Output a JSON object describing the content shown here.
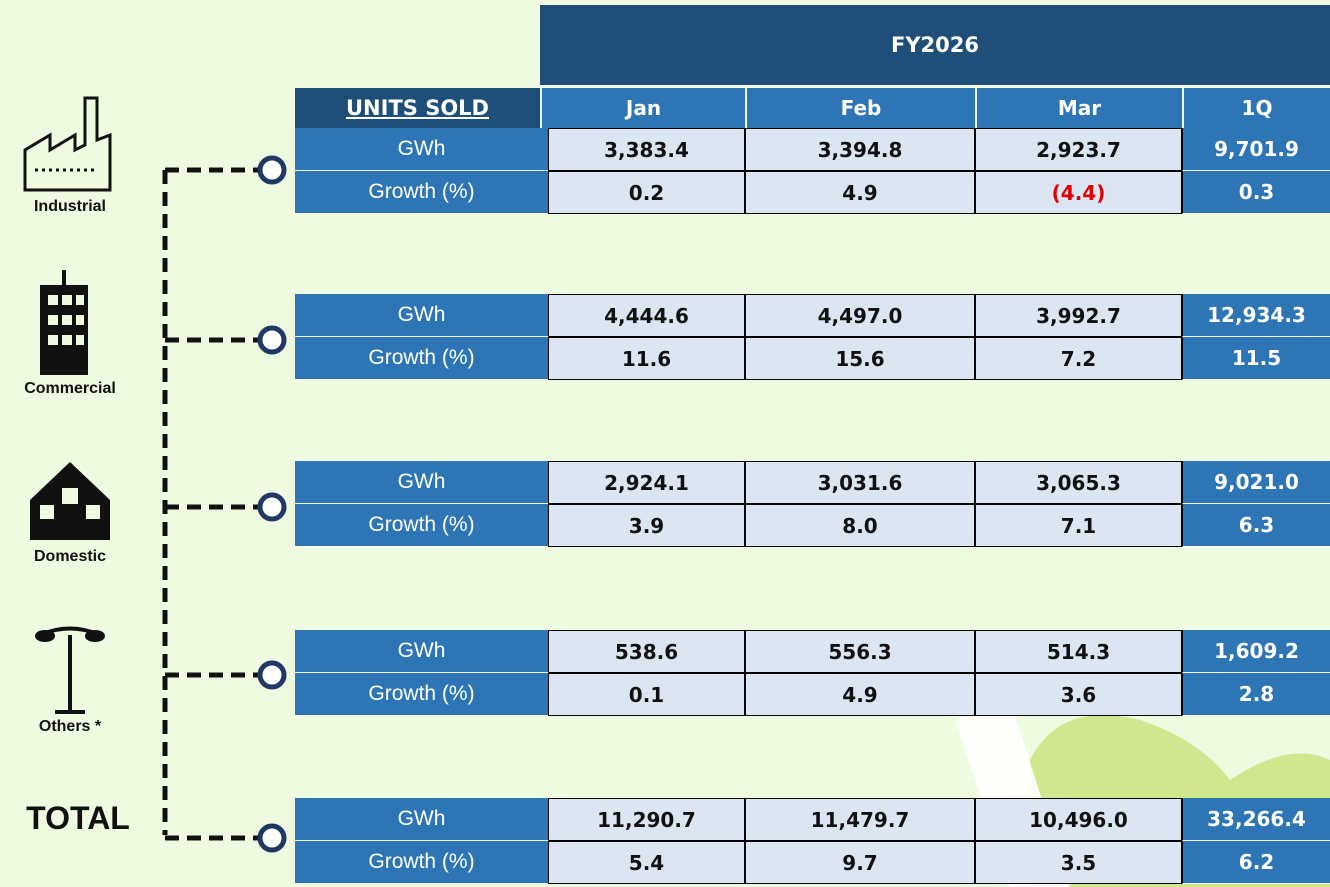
{
  "header": {
    "fiscal_year": "FY2026",
    "units": "UNITS SOLD",
    "columns": [
      "Jan",
      "Feb",
      "Mar",
      "1Q"
    ]
  },
  "sections": [
    {
      "label": "Industrial",
      "rows": [
        {
          "metric": "GWh",
          "values": [
            "3,383.4",
            "3,394.8",
            "2,923.7",
            "9,701.9"
          ]
        },
        {
          "metric": "Growth (%)",
          "values": [
            "0.2",
            "4.9",
            "(4.4)",
            "0.3"
          ]
        }
      ]
    },
    {
      "label": "Commercial",
      "rows": [
        {
          "metric": "GWh",
          "values": [
            "4,444.6",
            "4,497.0",
            "3,992.7",
            "12,934.3"
          ]
        },
        {
          "metric": "Growth (%)",
          "values": [
            "11.6",
            "15.6",
            "7.2",
            "11.5"
          ]
        }
      ]
    },
    {
      "label": "Domestic",
      "rows": [
        {
          "metric": "GWh",
          "values": [
            "2,924.1",
            "3,031.6",
            "3,065.3",
            "9,021.0"
          ]
        },
        {
          "metric": "Growth (%)",
          "values": [
            "3.9",
            "8.0",
            "7.1",
            "6.3"
          ]
        }
      ]
    },
    {
      "label": "Others *",
      "rows": [
        {
          "metric": "GWh",
          "values": [
            "538.6",
            "556.3",
            "514.3",
            "1,609.2"
          ]
        },
        {
          "metric": "Growth (%)",
          "values": [
            "0.1",
            "4.9",
            "3.6",
            "2.8"
          ]
        }
      ]
    },
    {
      "label": "TOTAL",
      "rows": [
        {
          "metric": "GWh",
          "values": [
            "11,290.7",
            "11,479.7",
            "10,496.0",
            "33,266.4"
          ]
        },
        {
          "metric": "Growth (%)",
          "values": [
            "5.4",
            "9.7",
            "3.5",
            "6.2"
          ]
        }
      ]
    }
  ]
}
